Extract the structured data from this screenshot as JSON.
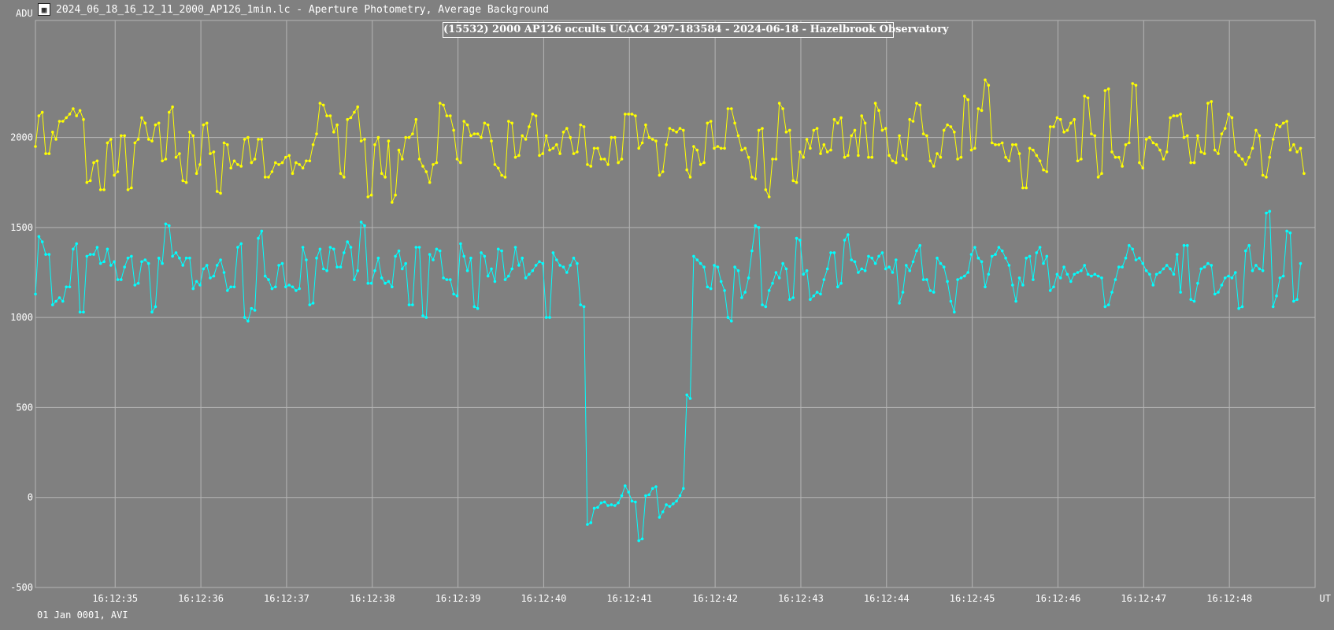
{
  "window": {
    "title": "2024_06_18_16_12_11_2000_AP126_1min.lc - Aperture Photometry, Average Background",
    "icon": "lightcurve-file-icon"
  },
  "footer": {
    "date_text": "01 Jan 0001, AVI"
  },
  "chart_data": {
    "type": "line",
    "title": "(15532) 2000 AP126 occults UCAC4 297-183584 - 2024-06-18 - Hazelbrook Observatory",
    "ylabel": "ADU",
    "xlabel": "UT",
    "ylim": [
      -500,
      2650
    ],
    "xlim": [
      34.07,
      49.0
    ],
    "grid": true,
    "background_color": "#808080",
    "grid_color": "#b4b4b4",
    "x_tick_values": [
      35,
      36,
      37,
      38,
      39,
      40,
      41,
      42,
      43,
      44,
      45,
      46,
      47,
      48
    ],
    "x_tick_labels": [
      "16:12:35",
      "16:12:36",
      "16:12:37",
      "16:12:38",
      "16:12:39",
      "16:12:40",
      "16:12:41",
      "16:12:42",
      "16:12:43",
      "16:12:44",
      "16:12:45",
      "16:12:46",
      "16:12:47",
      "16:12:48"
    ],
    "y_tick_values": [
      -500,
      0,
      500,
      1000,
      1500,
      2000
    ],
    "y_tick_labels": [
      "-500",
      "0",
      "500",
      "1000",
      "1500",
      "2000"
    ],
    "x_start": 34.07,
    "x_step": 0.04,
    "series": [
      {
        "color": "#ffff00",
        "values": [
          1950,
          2120,
          2140,
          1910,
          1910,
          2030,
          1990,
          2090,
          2090,
          2110,
          2130,
          2160,
          2120,
          2150,
          2100,
          1750,
          1760,
          1860,
          1870,
          1710,
          1710,
          1970,
          1990,
          1790,
          1810,
          2010,
          2010,
          1710,
          1720,
          1970,
          1990,
          2110,
          2080,
          1990,
          1980,
          2070,
          2080,
          1870,
          1880,
          2140,
          2170,
          1890,
          1910,
          1760,
          1750,
          2030,
          2010,
          1800,
          1850,
          2070,
          2080,
          1910,
          1920,
          1700,
          1690,
          1970,
          1960,
          1830,
          1870,
          1850,
          1840,
          1990,
          2000,
          1860,
          1880,
          1990,
          1990,
          1780,
          1780,
          1810,
          1860,
          1850,
          1860,
          1890,
          1900,
          1800,
          1860,
          1850,
          1830,
          1870,
          1870,
          1960,
          2020,
          2190,
          2180,
          2120,
          2120,
          2030,
          2070,
          1800,
          1780,
          2100,
          2110,
          2140,
          2170,
          1980,
          1990,
          1670,
          1680,
          1960,
          2000,
          1800,
          1780,
          1980,
          1640,
          1680,
          1930,
          1880,
          2000,
          2000,
          2020,
          2100,
          1880,
          1840,
          1810,
          1750,
          1850,
          1860,
          2190,
          2180,
          2120,
          2120,
          2040,
          1880,
          1860,
          2090,
          2070,
          2010,
          2020,
          2020,
          2000,
          2080,
          2070,
          1980,
          1850,
          1830,
          1790,
          1780,
          2090,
          2080,
          1890,
          1900,
          2010,
          1990,
          2060,
          2130,
          2120,
          1900,
          1910,
          2010,
          1930,
          1940,
          1960,
          1910,
          2030,
          2050,
          2000,
          1910,
          1920,
          2070,
          2060,
          1850,
          1840,
          1940,
          1940,
          1880,
          1880,
          1850,
          2000,
          2000,
          1860,
          1880,
          2130,
          2130,
          2130,
          2120,
          1940,
          1970,
          2070,
          2000,
          1990,
          1980,
          1790,
          1810,
          1960,
          2050,
          2040,
          2030,
          2050,
          2040,
          1820,
          1780,
          1950,
          1930,
          1850,
          1860,
          2080,
          2090,
          1940,
          1950,
          1940,
          1940,
          2160,
          2160,
          2080,
          2010,
          1930,
          1940,
          1890,
          1780,
          1770,
          2040,
          2050,
          1710,
          1670,
          1880,
          1880,
          2190,
          2160,
          2030,
          2040,
          1760,
          1750,
          1920,
          1890,
          1990,
          1940,
          2040,
          2050,
          1910,
          1960,
          1920,
          1930,
          2100,
          2080,
          2110,
          1890,
          1900,
          2010,
          2040,
          1900,
          2120,
          2080,
          1890,
          1890,
          2190,
          2150,
          2040,
          2050,
          1900,
          1870,
          1860,
          2010,
          1900,
          1880,
          2100,
          2090,
          2190,
          2180,
          2020,
          2010,
          1870,
          1840,
          1910,
          1890,
          2040,
          2070,
          2060,
          2030,
          1880,
          1890,
          2230,
          2210,
          1930,
          1940,
          2160,
          2150,
          2320,
          2290,
          1970,
          1960,
          1960,
          1970,
          1890,
          1870,
          1960,
          1960,
          1910,
          1720,
          1720,
          1940,
          1930,
          1900,
          1870,
          1820,
          1810,
          2060,
          2060,
          2110,
          2100,
          2030,
          2040,
          2080,
          2100,
          1870,
          1880,
          2230,
          2220,
          2020,
          2010,
          1780,
          1800,
          2260,
          2270,
          1920,
          1890,
          1890,
          1840,
          1960,
          1970,
          2300,
          2290,
          1860,
          1830,
          1990,
          2000,
          1970,
          1960,
          1930,
          1880,
          1920,
          2110,
          2120,
          2120,
          2130,
          2000,
          2010,
          1860,
          1860,
          2010,
          1920,
          1910,
          2190,
          2200,
          1930,
          1910,
          2020,
          2050,
          2130,
          2110,
          1920,
          1900,
          1880,
          1850,
          1890,
          1940,
          2040,
          2010,
          1790,
          1780,
          1890,
          1990,
          2070,
          2060,
          2080,
          2090,
          1930,
          1960,
          1920,
          1940,
          1800
        ]
      },
      {
        "color": "#00ffff",
        "values": [
          1130,
          1450,
          1420,
          1350,
          1350,
          1070,
          1090,
          1110,
          1090,
          1170,
          1170,
          1380,
          1410,
          1030,
          1030,
          1340,
          1350,
          1350,
          1390,
          1300,
          1310,
          1380,
          1290,
          1310,
          1210,
          1210,
          1280,
          1330,
          1340,
          1180,
          1190,
          1310,
          1320,
          1300,
          1030,
          1060,
          1330,
          1300,
          1520,
          1510,
          1340,
          1360,
          1330,
          1290,
          1330,
          1330,
          1160,
          1200,
          1180,
          1270,
          1290,
          1220,
          1230,
          1290,
          1320,
          1250,
          1150,
          1170,
          1170,
          1390,
          1410,
          1000,
          980,
          1050,
          1040,
          1440,
          1480,
          1230,
          1210,
          1160,
          1170,
          1290,
          1300,
          1170,
          1180,
          1170,
          1150,
          1160,
          1390,
          1320,
          1070,
          1080,
          1330,
          1380,
          1270,
          1260,
          1390,
          1380,
          1280,
          1280,
          1360,
          1420,
          1390,
          1210,
          1260,
          1530,
          1510,
          1190,
          1190,
          1260,
          1330,
          1220,
          1190,
          1200,
          1170,
          1340,
          1370,
          1270,
          1300,
          1070,
          1070,
          1390,
          1390,
          1010,
          1000,
          1350,
          1320,
          1380,
          1370,
          1220,
          1210,
          1210,
          1130,
          1120,
          1410,
          1340,
          1260,
          1330,
          1060,
          1050,
          1360,
          1340,
          1230,
          1270,
          1200,
          1380,
          1370,
          1210,
          1230,
          1270,
          1390,
          1290,
          1330,
          1220,
          1240,
          1260,
          1290,
          1310,
          1300,
          1000,
          1000,
          1360,
          1320,
          1290,
          1280,
          1250,
          1290,
          1330,
          1300,
          1070,
          1060,
          -150,
          -140,
          -60,
          -55,
          -30,
          -25,
          -45,
          -40,
          -45,
          -30,
          10,
          65,
          30,
          -20,
          -25,
          -240,
          -230,
          10,
          15,
          50,
          60,
          -110,
          -80,
          -40,
          -50,
          -35,
          -20,
          10,
          50,
          570,
          550,
          1340,
          1320,
          1300,
          1280,
          1170,
          1160,
          1290,
          1280,
          1200,
          1150,
          1000,
          980,
          1280,
          1260,
          1110,
          1140,
          1220,
          1370,
          1510,
          1500,
          1070,
          1060,
          1150,
          1190,
          1250,
          1220,
          1300,
          1270,
          1100,
          1110,
          1440,
          1430,
          1240,
          1260,
          1100,
          1120,
          1140,
          1130,
          1210,
          1270,
          1360,
          1360,
          1170,
          1190,
          1430,
          1460,
          1320,
          1310,
          1250,
          1270,
          1260,
          1340,
          1330,
          1300,
          1340,
          1360,
          1270,
          1280,
          1250,
          1320,
          1080,
          1140,
          1290,
          1260,
          1310,
          1370,
          1400,
          1210,
          1210,
          1150,
          1140,
          1330,
          1300,
          1280,
          1200,
          1090,
          1030,
          1210,
          1220,
          1230,
          1250,
          1350,
          1390,
          1330,
          1310,
          1170,
          1240,
          1340,
          1350,
          1390,
          1370,
          1330,
          1290,
          1180,
          1090,
          1220,
          1180,
          1330,
          1340,
          1210,
          1360,
          1390,
          1300,
          1340,
          1150,
          1170,
          1240,
          1220,
          1280,
          1240,
          1200,
          1240,
          1250,
          1260,
          1290,
          1240,
          1230,
          1240,
          1230,
          1220,
          1060,
          1070,
          1140,
          1210,
          1280,
          1280,
          1330,
          1400,
          1380,
          1320,
          1330,
          1300,
          1260,
          1240,
          1180,
          1240,
          1250,
          1270,
          1290,
          1270,
          1240,
          1350,
          1140,
          1400,
          1400,
          1100,
          1090,
          1190,
          1270,
          1280,
          1300,
          1290,
          1130,
          1140,
          1180,
          1220,
          1230,
          1220,
          1250,
          1050,
          1060,
          1370,
          1400,
          1260,
          1290,
          1270,
          1260,
          1580,
          1590,
          1060,
          1120,
          1220,
          1230,
          1480,
          1470,
          1090,
          1100,
          1300
        ]
      }
    ]
  }
}
